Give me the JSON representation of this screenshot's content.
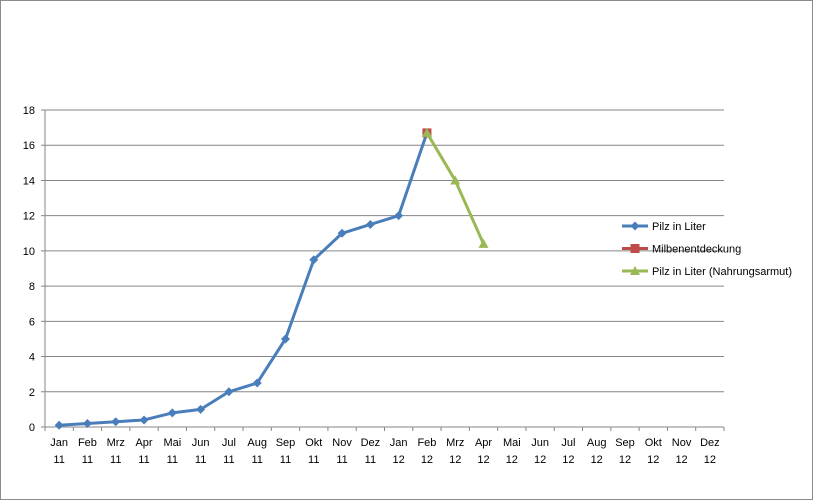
{
  "chart_data": {
    "type": "line",
    "title": "",
    "xlabel": "",
    "ylabel": "",
    "ylim": [
      0,
      18
    ],
    "yticks": [
      "0",
      "2",
      "4",
      "6",
      "8",
      "10",
      "12",
      "14",
      "16",
      "18"
    ],
    "grid": "horizontal",
    "legend_position": "right",
    "categories": [
      {
        "month": "Jan",
        "year": "11"
      },
      {
        "month": "Feb",
        "year": "11"
      },
      {
        "month": "Mrz",
        "year": "11"
      },
      {
        "month": "Apr",
        "year": "11"
      },
      {
        "month": "Mai",
        "year": "11"
      },
      {
        "month": "Jun",
        "year": "11"
      },
      {
        "month": "Jul",
        "year": "11"
      },
      {
        "month": "Aug",
        "year": "11"
      },
      {
        "month": "Sep",
        "year": "11"
      },
      {
        "month": "Okt",
        "year": "11"
      },
      {
        "month": "Nov",
        "year": "11"
      },
      {
        "month": "Dez",
        "year": "11"
      },
      {
        "month": "Jan",
        "year": "12"
      },
      {
        "month": "Feb",
        "year": "12"
      },
      {
        "month": "Mrz",
        "year": "12"
      },
      {
        "month": "Apr",
        "year": "12"
      },
      {
        "month": "Mai",
        "year": "12"
      },
      {
        "month": "Jun",
        "year": "12"
      },
      {
        "month": "Jul",
        "year": "12"
      },
      {
        "month": "Aug",
        "year": "12"
      },
      {
        "month": "Sep",
        "year": "12"
      },
      {
        "month": "Okt",
        "year": "12"
      },
      {
        "month": "Nov",
        "year": "12"
      },
      {
        "month": "Dez",
        "year": "12"
      }
    ],
    "series": [
      {
        "name": "Pilz in Liter",
        "color": "#4a7ebb",
        "marker": "diamond",
        "values": [
          0.1,
          0.2,
          0.3,
          0.4,
          0.8,
          1.0,
          2.0,
          2.5,
          5.0,
          9.5,
          11.0,
          11.5,
          12.0,
          16.7,
          null,
          null,
          null,
          null,
          null,
          null,
          null,
          null,
          null,
          null
        ]
      },
      {
        "name": "Milbenentdeckung",
        "color": "#be4b48",
        "marker": "square",
        "values": [
          null,
          null,
          null,
          null,
          null,
          null,
          null,
          null,
          null,
          null,
          null,
          null,
          null,
          16.7,
          null,
          null,
          null,
          null,
          null,
          null,
          null,
          null,
          null,
          null
        ]
      },
      {
        "name": "Pilz in Liter (Nahrungsarmut)",
        "color": "#98b954",
        "marker": "triangle",
        "values": [
          null,
          null,
          null,
          null,
          null,
          null,
          null,
          null,
          null,
          null,
          null,
          null,
          null,
          16.7,
          14.0,
          10.4,
          null,
          null,
          null,
          null,
          null,
          null,
          null,
          null
        ]
      }
    ]
  }
}
